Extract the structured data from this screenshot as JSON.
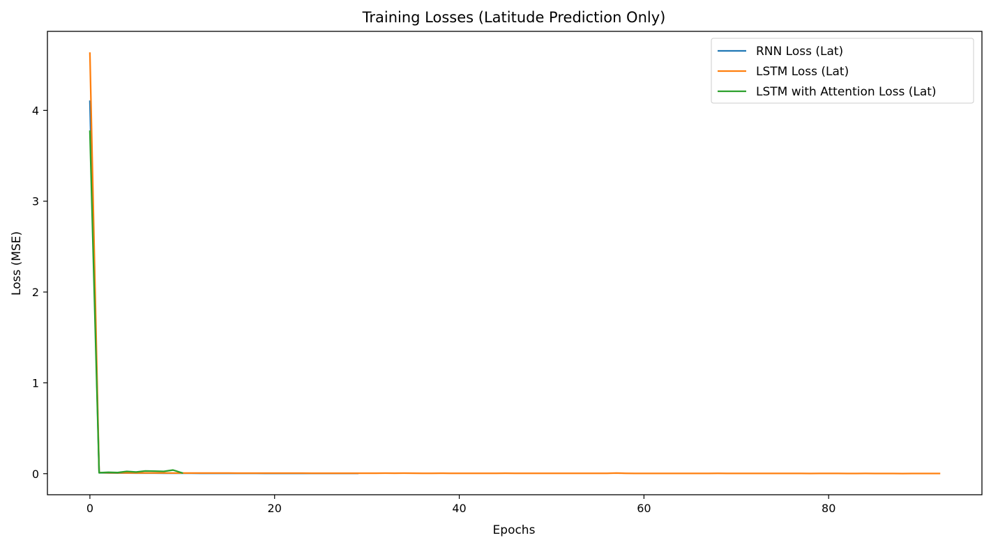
{
  "chart_data": {
    "type": "line",
    "title": "Training Losses (Latitude Prediction Only)",
    "xlabel": "Epochs",
    "ylabel": "Loss (MSE)",
    "xlim": [
      -4.6,
      96.6
    ],
    "ylim": [
      -0.232,
      4.87
    ],
    "xticks": [
      0,
      20,
      40,
      60,
      80
    ],
    "yticks": [
      0,
      1,
      2,
      3,
      4
    ],
    "grid": false,
    "legend_position": "top-right",
    "series": [
      {
        "name": "RNN Loss (Lat)",
        "color": "#1f77b4",
        "x": [
          0,
          1,
          2,
          3,
          4,
          5,
          6,
          7,
          8,
          9,
          10,
          11,
          12,
          13,
          14,
          15,
          16,
          17,
          18,
          19,
          20,
          21,
          22,
          23,
          24,
          25,
          26,
          27,
          28,
          29
        ],
        "y": [
          4.1,
          0.01,
          0.008,
          0.007,
          0.007,
          0.006,
          0.006,
          0.006,
          0.005,
          0.005,
          0.005,
          0.005,
          0.004,
          0.004,
          0.004,
          0.004,
          0.004,
          0.004,
          0.004,
          0.003,
          0.003,
          0.003,
          0.003,
          0.003,
          0.003,
          0.003,
          0.003,
          0.003,
          0.003,
          0.003
        ]
      },
      {
        "name": "LSTM Loss (Lat)",
        "color": "#ff7f0e",
        "x": [
          0,
          1,
          2,
          3,
          4,
          5,
          6,
          7,
          8,
          9,
          10,
          11,
          12,
          13,
          14,
          15,
          16,
          17,
          18,
          19,
          20,
          21,
          22,
          23,
          24,
          25,
          26,
          27,
          28,
          29,
          30,
          31,
          32,
          33,
          34,
          35,
          36,
          37,
          38,
          39,
          40,
          41,
          42,
          43,
          44,
          45,
          46,
          47,
          48,
          49,
          50,
          51,
          52,
          53,
          54,
          55,
          56,
          57,
          58,
          59,
          60,
          61,
          62,
          63,
          64,
          65,
          66,
          67,
          68,
          69,
          70,
          71,
          72,
          73,
          74,
          75,
          76,
          77,
          78,
          79,
          80,
          81,
          82,
          83,
          84,
          85,
          86,
          87,
          88,
          89,
          90,
          91,
          92
        ],
        "y": [
          4.63,
          0.012,
          0.01,
          0.009,
          0.009,
          0.008,
          0.008,
          0.008,
          0.008,
          0.007,
          0.007,
          0.007,
          0.007,
          0.007,
          0.007,
          0.007,
          0.006,
          0.006,
          0.006,
          0.006,
          0.006,
          0.006,
          0.006,
          0.006,
          0.005,
          0.005,
          0.005,
          0.005,
          0.005,
          0.005,
          0.005,
          0.005,
          0.006,
          0.005,
          0.006,
          0.005,
          0.004,
          0.004,
          0.005,
          0.004,
          0.004,
          0.004,
          0.004,
          0.004,
          0.004,
          0.005,
          0.004,
          0.004,
          0.004,
          0.004,
          0.004,
          0.004,
          0.004,
          0.004,
          0.004,
          0.004,
          0.004,
          0.007,
          0.004,
          0.003,
          0.003,
          0.003,
          0.003,
          0.003,
          0.003,
          0.003,
          0.003,
          0.003,
          0.004,
          0.003,
          0.003,
          0.003,
          0.003,
          0.003,
          0.003,
          0.003,
          0.003,
          0.003,
          0.002,
          0.003,
          0.003,
          0.003,
          0.002,
          0.002,
          0.003,
          0.002,
          0.002,
          0.002,
          0.001,
          0.002,
          0.002,
          0.002,
          0.002
        ]
      },
      {
        "name": "LSTM with Attention Loss (Lat)",
        "color": "#2ca02c",
        "x": [
          0,
          1,
          2,
          3,
          4,
          5,
          6,
          7,
          8,
          9,
          10
        ],
        "y": [
          3.77,
          0.01,
          0.015,
          0.012,
          0.025,
          0.018,
          0.03,
          0.028,
          0.025,
          0.04,
          0.008
        ]
      }
    ]
  }
}
